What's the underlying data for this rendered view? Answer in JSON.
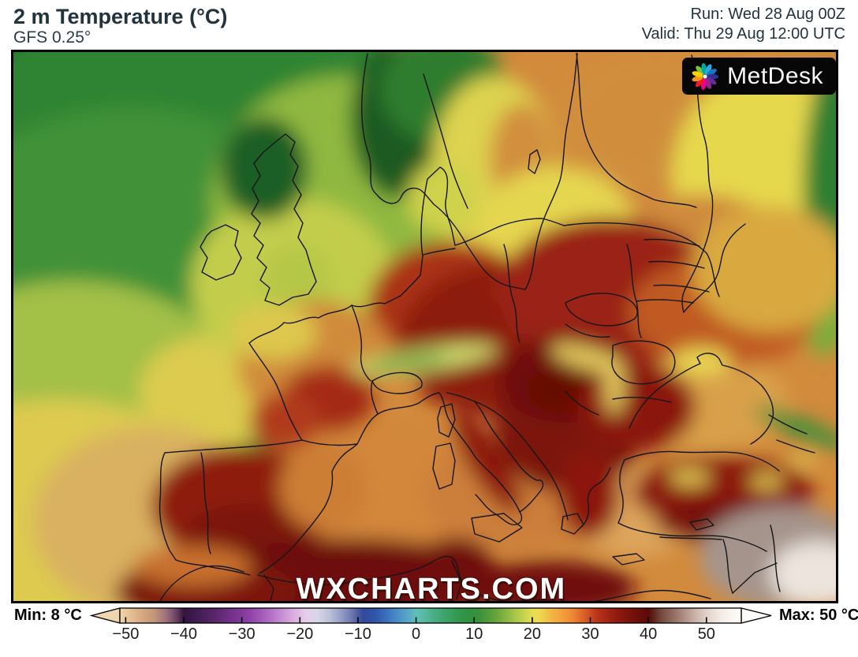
{
  "header": {
    "title": "2 m Temperature (°C)",
    "model": "GFS 0.25°",
    "run_label": "Run: Wed 28 Aug 00Z",
    "valid_label": "Valid: Thu 29 Aug 12:00 UTC"
  },
  "map": {
    "watermark": "WXCHARTS.COM",
    "logo_text": "MetDesk",
    "logo_icon": "pinwheel-icon",
    "logo_colors": [
      "#7dc242",
      "#00a99d",
      "#29abe2",
      "#1b75bc",
      "#2e3192",
      "#662d91",
      "#92278f",
      "#ec008c",
      "#ed1c24",
      "#f7941d",
      "#ffd200"
    ]
  },
  "legend": {
    "min_label": "Min: 8 °C",
    "max_label": "Max: 50 °C",
    "unit": "°C",
    "ticks": [
      {
        "v": -50,
        "label": "−50"
      },
      {
        "v": -40,
        "label": "−40"
      },
      {
        "v": -30,
        "label": "−30"
      },
      {
        "v": -20,
        "label": "−20"
      },
      {
        "v": -10,
        "label": "−10"
      },
      {
        "v": 0,
        "label": "0"
      },
      {
        "v": 10,
        "label": "10"
      },
      {
        "v": 20,
        "label": "20"
      },
      {
        "v": 30,
        "label": "30"
      },
      {
        "v": 40,
        "label": "40"
      },
      {
        "v": 50,
        "label": "50"
      }
    ],
    "colorbar_stops": [
      [
        -51,
        "#f0d6ae"
      ],
      [
        -49,
        "#e4bd90"
      ],
      [
        -47,
        "#d5a67e"
      ],
      [
        -45,
        "#c29478"
      ],
      [
        -44,
        "#b08279"
      ],
      [
        -43,
        "#9c6f7c"
      ],
      [
        -42,
        "#7f5571"
      ],
      [
        -41,
        "#5e3a58"
      ],
      [
        -40,
        "#33143c"
      ],
      [
        -38,
        "#3e1b50"
      ],
      [
        -35,
        "#562565"
      ],
      [
        -32,
        "#703088"
      ],
      [
        -29,
        "#8c3ea4"
      ],
      [
        -27,
        "#9e55b4"
      ],
      [
        -25,
        "#b370c4"
      ],
      [
        -23,
        "#c890d4"
      ],
      [
        -21,
        "#daafdf"
      ],
      [
        -19,
        "#e5cdea"
      ],
      [
        -17,
        "#d9d6e7"
      ],
      [
        -15,
        "#bdc1d9"
      ],
      [
        -13,
        "#989fc5"
      ],
      [
        -11,
        "#6b76ae"
      ],
      [
        -10,
        "#4b5ba0"
      ],
      [
        -9,
        "#33489b"
      ],
      [
        -7,
        "#3056ab"
      ],
      [
        -5,
        "#3b71bd"
      ],
      [
        -3,
        "#4b91c9"
      ],
      [
        -1,
        "#59aec5"
      ],
      [
        0,
        "#62beb9"
      ],
      [
        1,
        "#5bbba7"
      ],
      [
        3,
        "#4aae86"
      ],
      [
        5,
        "#3ca369"
      ],
      [
        7,
        "#329953"
      ],
      [
        9,
        "#2f9242"
      ],
      [
        11,
        "#3b9239"
      ],
      [
        13,
        "#589f3a"
      ],
      [
        15,
        "#7db13f"
      ],
      [
        17,
        "#a7c548"
      ],
      [
        19,
        "#cdd74f"
      ],
      [
        20,
        "#e6db53"
      ],
      [
        21,
        "#edda50"
      ],
      [
        22,
        "#efcc4b"
      ],
      [
        23,
        "#f1ba44"
      ],
      [
        25,
        "#f1a13d"
      ],
      [
        27,
        "#ed8735"
      ],
      [
        28,
        "#e5712d"
      ],
      [
        30,
        "#cd4b21"
      ],
      [
        31,
        "#bc361a"
      ],
      [
        33,
        "#a32514"
      ],
      [
        35,
        "#8c180f"
      ],
      [
        37,
        "#78110c"
      ],
      [
        39,
        "#660d0a"
      ],
      [
        40,
        "#5b0b09"
      ],
      [
        41,
        "#60251d"
      ],
      [
        42,
        "#72453a"
      ],
      [
        44,
        "#8e685d"
      ],
      [
        46,
        "#ac8c80"
      ],
      [
        48,
        "#cab1a7"
      ],
      [
        50,
        "#e1d0c8"
      ],
      [
        52,
        "#f1e7e1"
      ],
      [
        54,
        "#f9f4f0"
      ],
      [
        56,
        "#fdfbf9"
      ]
    ]
  }
}
